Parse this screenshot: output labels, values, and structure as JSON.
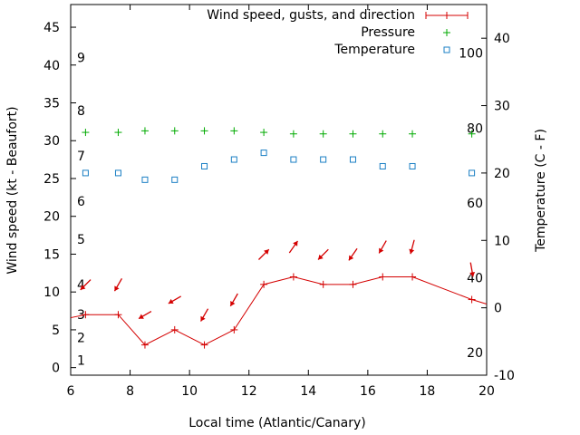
{
  "chart_data": {
    "type": "line",
    "xlabel": "Local time (Atlantic/Canary)",
    "ylabel": "Wind speed (kt - Beaufort)",
    "y2label": "Temperature (C - F)",
    "xlim": [
      6,
      20
    ],
    "ylim": [
      -1,
      48
    ],
    "y2lim": [
      -10,
      45
    ],
    "x_ticks": [
      6,
      8,
      10,
      12,
      14,
      16,
      18,
      20
    ],
    "y_ticks": [
      0,
      5,
      10,
      15,
      20,
      25,
      30,
      35,
      40,
      45
    ],
    "y2_ticks": [
      -10,
      0,
      10,
      20,
      30,
      40
    ],
    "beaufort_labels": [
      {
        "label": "1",
        "kt": 1
      },
      {
        "label": "2",
        "kt": 4
      },
      {
        "label": "3",
        "kt": 7
      },
      {
        "label": "4",
        "kt": 11
      },
      {
        "label": "5",
        "kt": 17
      },
      {
        "label": "6",
        "kt": 22
      },
      {
        "label": "7",
        "kt": 28
      },
      {
        "label": "8",
        "kt": 34
      },
      {
        "label": "9",
        "kt": 41
      }
    ],
    "fahrenheit_labels": [
      {
        "label": "20",
        "f": 20
      },
      {
        "label": "40",
        "f": 40
      },
      {
        "label": "60",
        "f": 60
      },
      {
        "label": "80",
        "f": 80
      },
      {
        "label": "100",
        "f": 100
      }
    ],
    "legend_position": "top-right",
    "series": [
      {
        "name": "Wind speed, gusts, and direction",
        "color": "#d40000",
        "x": [
          6,
          6.5,
          7.6,
          8.5,
          9.5,
          10.5,
          11.5,
          12.5,
          13.5,
          14.5,
          15.5,
          16.5,
          17.5,
          19.5,
          20
        ],
        "values": [
          6.6,
          7,
          7,
          3,
          5,
          3,
          5,
          11,
          12,
          11,
          11,
          12,
          12,
          9,
          8.4
        ],
        "direction_deg": [
          null,
          45,
          30,
          60,
          60,
          30,
          30,
          225,
          215,
          45,
          35,
          30,
          15,
          350,
          null
        ]
      },
      {
        "name": "Pressure",
        "color": "#00aa00",
        "x": [
          6.5,
          7.6,
          8.5,
          9.5,
          10.5,
          11.5,
          12.5,
          13.5,
          14.5,
          15.5,
          16.5,
          17.5,
          19.5
        ],
        "values": [
          31.1,
          31.1,
          31.3,
          31.3,
          31.3,
          31.3,
          31.1,
          30.9,
          30.9,
          30.9,
          30.9,
          30.9,
          30.9
        ]
      },
      {
        "name": "Temperature",
        "color": "#1a7fc4",
        "x": [
          6.5,
          7.6,
          8.5,
          9.5,
          10.5,
          11.5,
          12.5,
          13.5,
          14.5,
          15.5,
          16.5,
          17.5,
          19.5
        ],
        "values": [
          20,
          20,
          19,
          19,
          21,
          22,
          23,
          22,
          22,
          22,
          21,
          21,
          20
        ]
      }
    ]
  }
}
